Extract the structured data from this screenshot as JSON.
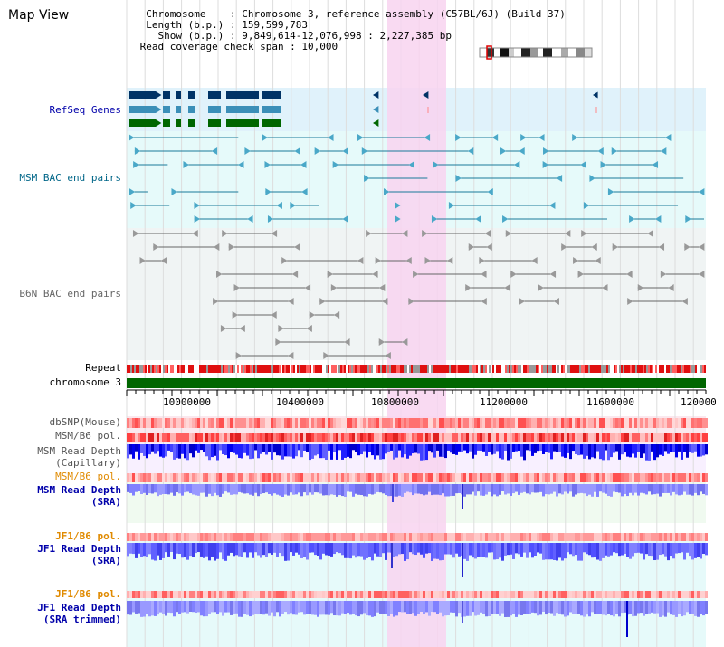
{
  "title": "Map View",
  "header": {
    "line1": "  Chromosome    : Chromosome 3, reference assembly (C57BL/6J) (Build 37)",
    "line2": "  Length (b.p.) : 159,599,783",
    "line3": "    Show (b.p.) : 9,849,614-12,076,998 : 2,227,385 bp",
    "line4": " Read coverage check span : 10,000"
  },
  "tracks": {
    "refseq": "RefSeq Genes",
    "msm_bac": "MSM BAC end pairs",
    "b6n_bac": "B6N BAC end pairs",
    "repeat": "Repeat",
    "chromosome": "chromosome 3",
    "dbsnp": "dbSNP(Mouse)",
    "msm_b6_pol_1": "MSM/B6 pol.",
    "msm_read_depth_cap": "MSM Read Depth",
    "msm_read_depth_cap_sub": "(Capillary)",
    "msm_b6_pol_2": "MSM/B6 pol.",
    "msm_read_depth_sra": "MSM Read Depth",
    "msm_read_depth_sra_sub": "(SRA)",
    "jf1_b6_pol_1": "JF1/B6 pol.",
    "jf1_read_depth_sra": "JF1 Read Depth",
    "jf1_read_depth_sra_sub": "(SRA)",
    "jf1_b6_pol_2": "JF1/B6 pol.",
    "jf1_read_depth_trim": "JF1 Read Depth",
    "jf1_read_depth_trim_sub": "(SRA trimmed)"
  },
  "axis": {
    "ticks": [
      "10000000",
      "10400000",
      "10800000",
      "11200000",
      "11600000",
      "120000"
    ]
  },
  "colors": {
    "blue_label": "#0000aa",
    "teal_label": "#006688",
    "gray_label": "#666666",
    "orange_label": "#e08a00",
    "highlight": "#f8d4f0",
    "chromosome_green": "#006600"
  }
}
